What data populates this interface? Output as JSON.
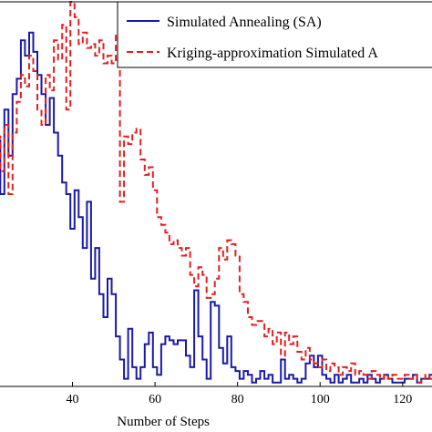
{
  "chart_data": {
    "type": "line",
    "title": "",
    "xlabel": "Number of Steps",
    "ylabel": "",
    "xlim": [
      22,
      128
    ],
    "ylim": [
      0,
      10
    ],
    "xticks": [
      40,
      60,
      80,
      100,
      120
    ],
    "grid": false,
    "legend_position": "top-right",
    "series": [
      {
        "name": "Simulated Annealing (SA)",
        "color": "#1a1aa6",
        "style": "solid",
        "x": [
          22,
          23,
          24,
          25,
          26,
          27,
          28,
          29,
          30,
          31,
          32,
          33,
          34,
          35,
          36,
          37,
          38,
          39,
          40,
          41,
          42,
          43,
          44,
          45,
          46,
          47,
          48,
          49,
          50,
          51,
          52,
          53,
          54,
          55,
          56,
          57,
          58,
          59,
          60,
          61,
          62,
          63,
          64,
          65,
          66,
          67,
          68,
          69,
          70,
          71,
          72,
          73,
          74,
          75,
          76,
          77,
          78,
          79,
          80,
          81,
          82,
          83,
          84,
          85,
          86,
          87,
          88,
          89,
          90,
          91,
          92,
          93,
          94,
          95,
          96,
          97,
          98,
          99,
          100,
          101,
          102,
          103,
          104,
          105,
          106,
          107,
          108,
          109,
          110,
          111,
          112,
          113,
          114,
          115,
          116,
          117,
          118,
          119,
          120,
          121,
          122,
          123,
          124,
          125,
          126,
          127,
          128
        ],
        "y": [
          6.4,
          5.0,
          7.2,
          6.0,
          7.6,
          8.0,
          9.0,
          8.6,
          9.2,
          8.7,
          8.1,
          7.6,
          6.8,
          7.5,
          6.6,
          6.0,
          5.3,
          5.0,
          4.1,
          5.1,
          4.4,
          3.6,
          4.8,
          2.8,
          3.6,
          2.4,
          1.8,
          2.8,
          2.4,
          1.3,
          0.7,
          0.2,
          1.5,
          0.5,
          0.2,
          0.5,
          1.1,
          1.4,
          0.5,
          0.3,
          1.1,
          1.3,
          1.2,
          1.1,
          1.2,
          1.2,
          0.8,
          0.5,
          2.5,
          1.3,
          0.7,
          0.2,
          2.2,
          2.1,
          1.0,
          0.6,
          1.3,
          0.5,
          0.4,
          0.2,
          0.4,
          0.3,
          0.1,
          0.2,
          0.4,
          0.2,
          0.3,
          0.1,
          0.1,
          0.7,
          0.2,
          0.3,
          0.2,
          0.1,
          0.2,
          0.6,
          0.8,
          0.5,
          0.8,
          0.3,
          0.2,
          0.1,
          0.3,
          0.1,
          0.2,
          0.3,
          0.1,
          0.1,
          0.2,
          0.1,
          0.3,
          0.2,
          0.1,
          0.2,
          0.3,
          0.2,
          0.1,
          0.1,
          0.1,
          0.2,
          0.2,
          0.3,
          0.1,
          0.2,
          0.2,
          0.3,
          0.2
        ]
      },
      {
        "name": "Kriging-approximation Simulated A",
        "color": "#e02020",
        "style": "dashed",
        "x": [
          22,
          23,
          24,
          25,
          26,
          27,
          28,
          29,
          30,
          31,
          32,
          33,
          34,
          35,
          36,
          37,
          38,
          39,
          40,
          41,
          42,
          43,
          44,
          45,
          46,
          47,
          48,
          49,
          50,
          51,
          52,
          53,
          54,
          55,
          56,
          57,
          58,
          59,
          60,
          61,
          62,
          63,
          64,
          65,
          66,
          67,
          68,
          69,
          70,
          71,
          72,
          73,
          74,
          75,
          76,
          77,
          78,
          79,
          80,
          81,
          82,
          83,
          84,
          85,
          86,
          87,
          88,
          89,
          90,
          91,
          92,
          93,
          94,
          95,
          96,
          97,
          98,
          99,
          100,
          101,
          102,
          103,
          104,
          105,
          106,
          107,
          108,
          109,
          110,
          111,
          112,
          113,
          114,
          115,
          116,
          117,
          118,
          119,
          120,
          121,
          122,
          123,
          124,
          125,
          126,
          127,
          128
        ],
        "y": [
          6.5,
          5.6,
          6.8,
          5.0,
          6.6,
          7.4,
          8.1,
          7.8,
          8.6,
          8.2,
          7.2,
          6.8,
          8.1,
          7.7,
          9.0,
          8.5,
          9.4,
          7.2,
          10.0,
          9.6,
          8.9,
          9.2,
          8.8,
          8.9,
          8.6,
          9.0,
          8.4,
          8.6,
          8.4,
          9.2,
          4.8,
          6.5,
          6.3,
          6.6,
          6.7,
          5.9,
          5.5,
          5.7,
          5.1,
          4.4,
          4.2,
          4.0,
          3.7,
          3.8,
          3.6,
          3.4,
          3.6,
          2.9,
          2.6,
          3.1,
          2.9,
          2.3,
          2.4,
          2.8,
          3.6,
          3.3,
          3.8,
          3.7,
          3.4,
          2.4,
          2.2,
          1.8,
          1.6,
          1.7,
          1.7,
          1.3,
          1.5,
          1.1,
          1.4,
          0.8,
          1.4,
          1.1,
          1.3,
          0.9,
          0.7,
          1.0,
          0.7,
          0.6,
          0.5,
          0.7,
          0.4,
          0.6,
          0.5,
          0.3,
          0.5,
          0.4,
          0.6,
          0.3,
          0.4,
          0.3,
          0.2,
          0.4,
          0.3,
          0.2,
          0.3,
          0.2,
          0.3,
          0.2,
          0.2,
          0.3,
          0.2,
          0.3,
          0.1,
          0.2,
          0.3,
          0.2,
          0.2
        ]
      }
    ]
  }
}
